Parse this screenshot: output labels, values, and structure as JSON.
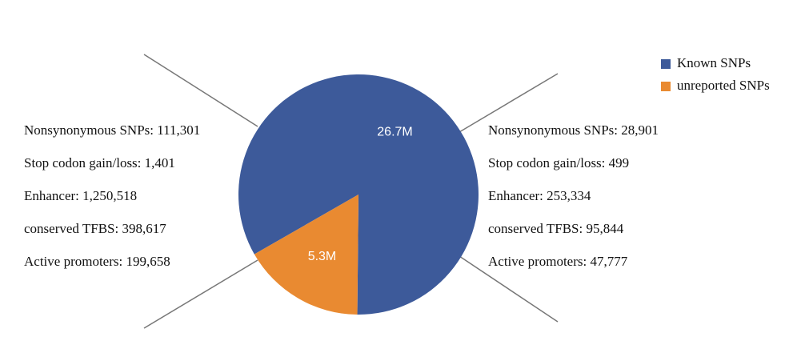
{
  "chart_data": {
    "type": "pie",
    "series": [
      {
        "name": "Known SNPs",
        "color": "#3d5a9a",
        "values": [
          26.7
        ],
        "value_labels": [
          "26.7M"
        ],
        "annotations": [
          "Nonsynonymous SNPs: 111,301",
          "Stop codon gain/loss: 1,401",
          "Enhancer: 1,250,518",
          "conserved TFBS: 398,617",
          "Active promoters: 199,658"
        ]
      },
      {
        "name": "unreported SNPs",
        "color": "#e98a31",
        "values": [
          5.3
        ],
        "value_labels": [
          "5.3M"
        ],
        "annotations": [
          "Nonsynonymous SNPs: 28,901",
          "Stop codon gain/loss: 499",
          "Enhancer: 253,334",
          "conserved TFBS: 95,844",
          "Active promoters: 47,777"
        ]
      }
    ],
    "legend": "top-right"
  }
}
